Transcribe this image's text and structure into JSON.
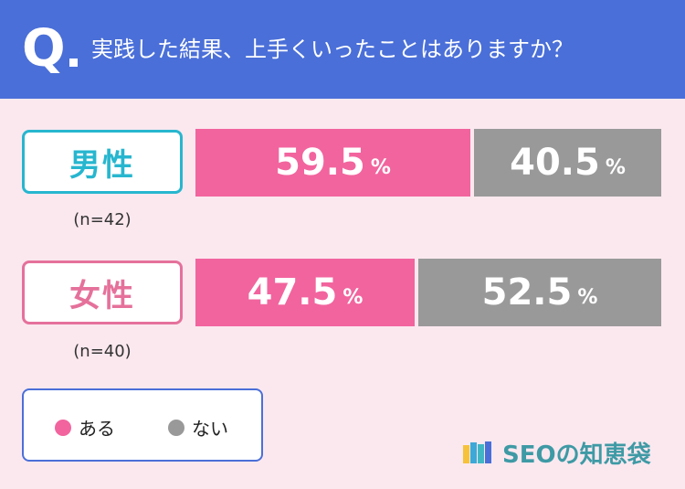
{
  "header": {
    "q_mark": "Q",
    "question": "実践した結果、上手くいったことはありますか？"
  },
  "groups": [
    {
      "label": "男性",
      "n": "(n=42)"
    },
    {
      "label": "女性",
      "n": "(n=40)"
    }
  ],
  "legend": {
    "yes_label": "ある",
    "no_label": "ない"
  },
  "brand": {
    "name": "SEOの知恵袋"
  },
  "colors": {
    "yes": "#f2649e",
    "no": "#999999",
    "header": "#4a6fd8",
    "male": "#27b6cf",
    "female": "#e5719b"
  },
  "chart_data": {
    "type": "bar",
    "orientation": "horizontal-stacked-100",
    "categories": [
      "男性",
      "女性"
    ],
    "series": [
      {
        "name": "ある",
        "values": [
          59.5,
          47.5
        ]
      },
      {
        "name": "ない",
        "values": [
          40.5,
          52.5
        ]
      }
    ],
    "unit": "%",
    "legend": "bottom-left"
  }
}
